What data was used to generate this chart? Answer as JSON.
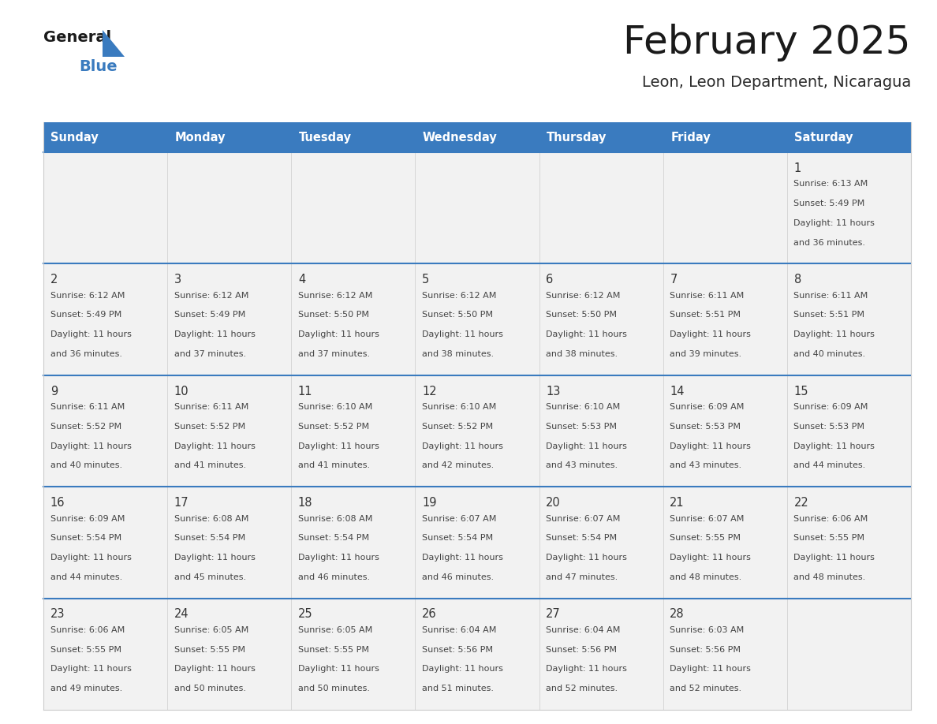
{
  "title": "February 2025",
  "subtitle": "Leon, Leon Department, Nicaragua",
  "header_color": "#3a7bbf",
  "header_text_color": "#ffffff",
  "cell_bg_color": "#f2f2f2",
  "border_color": "#3a7bbf",
  "grid_line_color": "#cccccc",
  "text_color": "#333333",
  "days_of_week": [
    "Sunday",
    "Monday",
    "Tuesday",
    "Wednesday",
    "Thursday",
    "Friday",
    "Saturday"
  ],
  "calendar_data": [
    [
      null,
      null,
      null,
      null,
      null,
      null,
      {
        "day": "1",
        "sunrise": "6:13 AM",
        "sunset": "5:49 PM",
        "daylight_line1": "11 hours",
        "daylight_line2": "and 36 minutes."
      }
    ],
    [
      {
        "day": "2",
        "sunrise": "6:12 AM",
        "sunset": "5:49 PM",
        "daylight_line1": "11 hours",
        "daylight_line2": "and 36 minutes."
      },
      {
        "day": "3",
        "sunrise": "6:12 AM",
        "sunset": "5:49 PM",
        "daylight_line1": "11 hours",
        "daylight_line2": "and 37 minutes."
      },
      {
        "day": "4",
        "sunrise": "6:12 AM",
        "sunset": "5:50 PM",
        "daylight_line1": "11 hours",
        "daylight_line2": "and 37 minutes."
      },
      {
        "day": "5",
        "sunrise": "6:12 AM",
        "sunset": "5:50 PM",
        "daylight_line1": "11 hours",
        "daylight_line2": "and 38 minutes."
      },
      {
        "day": "6",
        "sunrise": "6:12 AM",
        "sunset": "5:50 PM",
        "daylight_line1": "11 hours",
        "daylight_line2": "and 38 minutes."
      },
      {
        "day": "7",
        "sunrise": "6:11 AM",
        "sunset": "5:51 PM",
        "daylight_line1": "11 hours",
        "daylight_line2": "and 39 minutes."
      },
      {
        "day": "8",
        "sunrise": "6:11 AM",
        "sunset": "5:51 PM",
        "daylight_line1": "11 hours",
        "daylight_line2": "and 40 minutes."
      }
    ],
    [
      {
        "day": "9",
        "sunrise": "6:11 AM",
        "sunset": "5:52 PM",
        "daylight_line1": "11 hours",
        "daylight_line2": "and 40 minutes."
      },
      {
        "day": "10",
        "sunrise": "6:11 AM",
        "sunset": "5:52 PM",
        "daylight_line1": "11 hours",
        "daylight_line2": "and 41 minutes."
      },
      {
        "day": "11",
        "sunrise": "6:10 AM",
        "sunset": "5:52 PM",
        "daylight_line1": "11 hours",
        "daylight_line2": "and 41 minutes."
      },
      {
        "day": "12",
        "sunrise": "6:10 AM",
        "sunset": "5:52 PM",
        "daylight_line1": "11 hours",
        "daylight_line2": "and 42 minutes."
      },
      {
        "day": "13",
        "sunrise": "6:10 AM",
        "sunset": "5:53 PM",
        "daylight_line1": "11 hours",
        "daylight_line2": "and 43 minutes."
      },
      {
        "day": "14",
        "sunrise": "6:09 AM",
        "sunset": "5:53 PM",
        "daylight_line1": "11 hours",
        "daylight_line2": "and 43 minutes."
      },
      {
        "day": "15",
        "sunrise": "6:09 AM",
        "sunset": "5:53 PM",
        "daylight_line1": "11 hours",
        "daylight_line2": "and 44 minutes."
      }
    ],
    [
      {
        "day": "16",
        "sunrise": "6:09 AM",
        "sunset": "5:54 PM",
        "daylight_line1": "11 hours",
        "daylight_line2": "and 44 minutes."
      },
      {
        "day": "17",
        "sunrise": "6:08 AM",
        "sunset": "5:54 PM",
        "daylight_line1": "11 hours",
        "daylight_line2": "and 45 minutes."
      },
      {
        "day": "18",
        "sunrise": "6:08 AM",
        "sunset": "5:54 PM",
        "daylight_line1": "11 hours",
        "daylight_line2": "and 46 minutes."
      },
      {
        "day": "19",
        "sunrise": "6:07 AM",
        "sunset": "5:54 PM",
        "daylight_line1": "11 hours",
        "daylight_line2": "and 46 minutes."
      },
      {
        "day": "20",
        "sunrise": "6:07 AM",
        "sunset": "5:54 PM",
        "daylight_line1": "11 hours",
        "daylight_line2": "and 47 minutes."
      },
      {
        "day": "21",
        "sunrise": "6:07 AM",
        "sunset": "5:55 PM",
        "daylight_line1": "11 hours",
        "daylight_line2": "and 48 minutes."
      },
      {
        "day": "22",
        "sunrise": "6:06 AM",
        "sunset": "5:55 PM",
        "daylight_line1": "11 hours",
        "daylight_line2": "and 48 minutes."
      }
    ],
    [
      {
        "day": "23",
        "sunrise": "6:06 AM",
        "sunset": "5:55 PM",
        "daylight_line1": "11 hours",
        "daylight_line2": "and 49 minutes."
      },
      {
        "day": "24",
        "sunrise": "6:05 AM",
        "sunset": "5:55 PM",
        "daylight_line1": "11 hours",
        "daylight_line2": "and 50 minutes."
      },
      {
        "day": "25",
        "sunrise": "6:05 AM",
        "sunset": "5:55 PM",
        "daylight_line1": "11 hours",
        "daylight_line2": "and 50 minutes."
      },
      {
        "day": "26",
        "sunrise": "6:04 AM",
        "sunset": "5:56 PM",
        "daylight_line1": "11 hours",
        "daylight_line2": "and 51 minutes."
      },
      {
        "day": "27",
        "sunrise": "6:04 AM",
        "sunset": "5:56 PM",
        "daylight_line1": "11 hours",
        "daylight_line2": "and 52 minutes."
      },
      {
        "day": "28",
        "sunrise": "6:03 AM",
        "sunset": "5:56 PM",
        "daylight_line1": "11 hours",
        "daylight_line2": "and 52 minutes."
      },
      null
    ]
  ]
}
